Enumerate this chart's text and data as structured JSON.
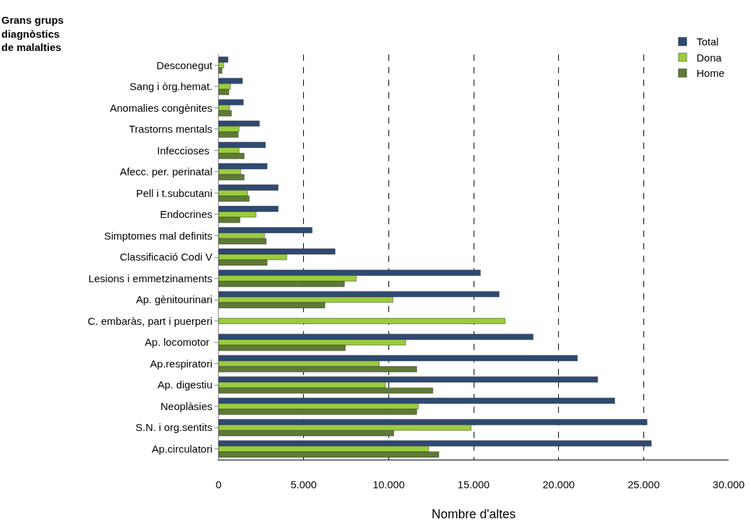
{
  "chart_data": {
    "type": "bar",
    "orientation": "horizontal",
    "xlabel": "Nombre d'altes",
    "ylabel": "Grans grups diagnòstics de malalties",
    "categories": [
      "Desconegut",
      "Sang i òrg.hemat.",
      "Anomalies congènites",
      "Trastorns mentals",
      "Infeccioses ",
      "Afecc. per. perinatal",
      "Pell i t.subcutani",
      "Endocrines",
      "Simptomes mal definits",
      "Classificació Codi V",
      "Lesions i emmetzinaments",
      "Ap. gènitourinari",
      "C. embaràs, part i puerperi",
      "Ap. locomotor ",
      "Ap.respiratori",
      "Ap. digestiu",
      "Neoplàsies",
      "S.N. i org.sentits",
      "Ap.circulatori"
    ],
    "series": [
      {
        "name": "Total",
        "color": "#2e4a72",
        "values": [
          550,
          1400,
          1450,
          2400,
          2750,
          2850,
          3500,
          3500,
          5500,
          6850,
          15400,
          16500,
          null,
          18500,
          21100,
          22300,
          23300,
          25200,
          25450
        ]
      },
      {
        "name": "Dona",
        "color": "#9acd3c",
        "values": [
          300,
          700,
          650,
          1200,
          1200,
          1300,
          1700,
          2200,
          2700,
          4000,
          8100,
          10250,
          16850,
          11000,
          9450,
          9800,
          11750,
          14850,
          12350
        ]
      },
      {
        "name": "Home",
        "color": "#5e7a34",
        "values": [
          200,
          600,
          750,
          1150,
          1500,
          1500,
          1800,
          1250,
          2800,
          2850,
          7400,
          6250,
          null,
          7450,
          11650,
          12600,
          11650,
          10300,
          12950
        ]
      }
    ],
    "xlim": [
      0,
      30000
    ],
    "xticks": [
      0,
      {
        "value": 5000,
        "label": "5.000"
      },
      {
        "value": 10000,
        "label": "10.000"
      },
      {
        "value": 15000,
        "label": "15.000"
      },
      {
        "value": 20000,
        "label": "20.000"
      },
      {
        "value": 25000,
        "label": "25.000"
      },
      {
        "value": 30000,
        "label": "30.000"
      }
    ],
    "grid": "x",
    "line_style": "dashed",
    "legend": "top right"
  }
}
